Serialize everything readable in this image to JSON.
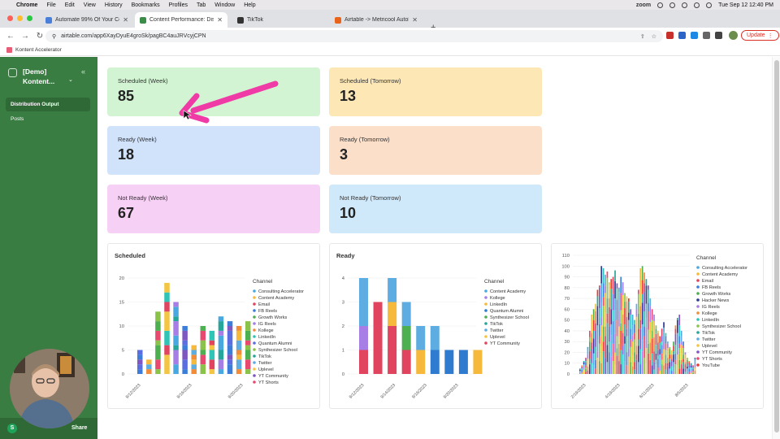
{
  "menubar": {
    "app": "Chrome",
    "items": [
      "File",
      "Edit",
      "View",
      "History",
      "Bookmarks",
      "Profiles",
      "Tab",
      "Window",
      "Help"
    ],
    "zoom_label": "zoom",
    "datetime": "Tue Sep 12  12:40 PM"
  },
  "browser": {
    "tabs": [
      {
        "title": "Automate 99% Of Your Conte",
        "color": "#4a7fd9"
      },
      {
        "title": "Content Performance: Distrib",
        "color": "#3c8d4a"
      },
      {
        "title": "TikTok",
        "color": "#333333"
      },
      {
        "title": "Airtable -> Metricool Autolist",
        "color": "#e8641b"
      }
    ],
    "url": "airtable.com/app6XayDyuE4groSk/pagBC4auJRVcyjCPN",
    "update_label": "Update",
    "bookmark": "Kontent Accelerator"
  },
  "sidebar": {
    "title": "[Demo] Kontent...",
    "items": [
      {
        "label": "Distribution Output",
        "active": true
      },
      {
        "label": "Posts",
        "active": false
      }
    ],
    "share_initial": "S",
    "share_label": "Share"
  },
  "summary_cards": [
    {
      "label": "Scheduled (Week)",
      "value": "85",
      "color": "#d2f4d3"
    },
    {
      "label": "Scheduled (Tomorrow)",
      "value": "13",
      "color": "#fde7b5"
    },
    {
      "label": "Ready (Week)",
      "value": "18",
      "color": "#d1e2fb"
    },
    {
      "label": "Ready (Tomorrow)",
      "value": "3",
      "color": "#fbdfc9"
    },
    {
      "label": "Not Ready (Week)",
      "value": "67",
      "color": "#f7d0f5"
    },
    {
      "label": "Not Ready (Tomorrow)",
      "value": "10",
      "color": "#cfe9fb"
    }
  ],
  "chart_data": [
    {
      "type": "bar",
      "stacked": true,
      "title": "Scheduled",
      "legend_title": "Channel",
      "legend": [
        "Consulting Accelerator",
        "Content Academy",
        "Email",
        "FB Reels",
        "Growth Works",
        "IG Reels",
        "Kollege",
        "LinkedIn",
        "Quantum Alumni",
        "Synthesizer School",
        "TikTok",
        "Twitter",
        "Uplevel",
        "YT Community",
        "YT Shorts"
      ],
      "legend_colors": [
        "#4aa8e0",
        "#f6b93b",
        "#e0445e",
        "#3c7dd9",
        "#4caf50",
        "#a77de6",
        "#f28c38",
        "#2ec4b6",
        "#5b6ee1",
        "#8bc34a",
        "#26a69a",
        "#5dade2",
        "#f4c542",
        "#7e57c2",
        "#e84a6f"
      ],
      "x_tick_labels": [
        "9/12/2023",
        "9/16/2023",
        "9/20/2023"
      ],
      "categories": [
        "9/12",
        "9/13",
        "9/14",
        "9/15",
        "9/16",
        "9/17",
        "9/18",
        "9/19",
        "9/20",
        "9/21",
        "9/22",
        "9/23",
        "9/24"
      ],
      "values": [
        5,
        3,
        13,
        19,
        15,
        10,
        6,
        10,
        9,
        12,
        11,
        10,
        11
      ],
      "ylim": [
        0,
        20
      ],
      "yticks": [
        0,
        5,
        10,
        15,
        20
      ]
    },
    {
      "type": "bar",
      "stacked": true,
      "title": "Ready",
      "legend_title": "Channel",
      "legend": [
        "Content Academy",
        "Kollege",
        "LinkedIn",
        "Quantum Alumni",
        "Synthesizer School",
        "TikTok",
        "Twitter",
        "Uplevel",
        "YT Community"
      ],
      "legend_colors": [
        "#4aa8e0",
        "#a77de6",
        "#f6b93b",
        "#2e7bcf",
        "#4caf50",
        "#26a69a",
        "#5dade2",
        "#f4c542",
        "#e0445e"
      ],
      "x_tick_labels": [
        "9/12/2023",
        "9/14/2023",
        "9/16/2023",
        "9/20/2023"
      ],
      "categories": [
        "9/12",
        "9/13",
        "9/14",
        "9/15",
        "9/16",
        "9/18",
        "9/19",
        "9/20",
        "9/21"
      ],
      "series": [
        {
          "name": "YT Community",
          "values": [
            1,
            3,
            2,
            1,
            0,
            0,
            0,
            0,
            0
          ]
        },
        {
          "name": "Kollege",
          "values": [
            1,
            0,
            0,
            0,
            0,
            0,
            0,
            0,
            0
          ]
        },
        {
          "name": "LinkedIn",
          "values": [
            0,
            0,
            1,
            0,
            1,
            0,
            0,
            0,
            1
          ]
        },
        {
          "name": "Quantum Alumni",
          "values": [
            0,
            0,
            0,
            0,
            0,
            1,
            1,
            1,
            0
          ]
        },
        {
          "name": "Synthesizer School",
          "values": [
            0,
            0,
            0,
            1,
            0,
            0,
            0,
            0,
            0
          ]
        },
        {
          "name": "Twitter",
          "values": [
            2,
            0,
            1,
            1,
            1,
            1,
            0,
            0,
            0
          ]
        }
      ],
      "ylim": [
        0,
        4
      ],
      "yticks": [
        0,
        1,
        2,
        3,
        4
      ]
    },
    {
      "type": "bar",
      "stacked": true,
      "title": "",
      "legend_title": "Channel",
      "legend": [
        "Consulting Accelerator",
        "Content Academy",
        "Email",
        "FB Reels",
        "Growth Works",
        "Hacker News",
        "IG Reels",
        "Kollege",
        "LinkedIn",
        "Synthesizer School",
        "TikTok",
        "Twitter",
        "Uplevel",
        "YT Community",
        "YT Shorts",
        "YouTube"
      ],
      "legend_colors": [
        "#4aa8e0",
        "#f6b93b",
        "#e0445e",
        "#3c7dd9",
        "#4caf50",
        "#2b3990",
        "#a77de6",
        "#f28c38",
        "#2ec4b6",
        "#8bc34a",
        "#26a69a",
        "#5dade2",
        "#f4c542",
        "#7e57c2",
        "#e84a6f",
        "#e53935"
      ],
      "x_tick_labels": [
        "2/19/2023",
        "4/19/2023",
        "6/11/2023",
        "8/5/2023"
      ],
      "ylim": [
        0,
        110
      ],
      "yticks": [
        0,
        10,
        20,
        30,
        40,
        50,
        60,
        70,
        80,
        90,
        100,
        110
      ],
      "values": [
        5,
        8,
        12,
        15,
        25,
        40,
        55,
        60,
        65,
        78,
        82,
        100,
        98,
        92,
        95,
        85,
        88,
        90,
        96,
        84,
        80,
        90,
        85,
        75,
        72,
        70,
        60,
        55,
        50,
        65,
        78,
        98,
        100,
        94,
        88,
        82,
        70,
        60,
        55,
        45,
        40,
        35,
        42,
        48,
        38,
        30,
        25,
        22,
        30,
        45,
        52,
        55,
        40,
        30,
        20,
        15,
        12,
        10,
        8,
        15
      ]
    }
  ]
}
